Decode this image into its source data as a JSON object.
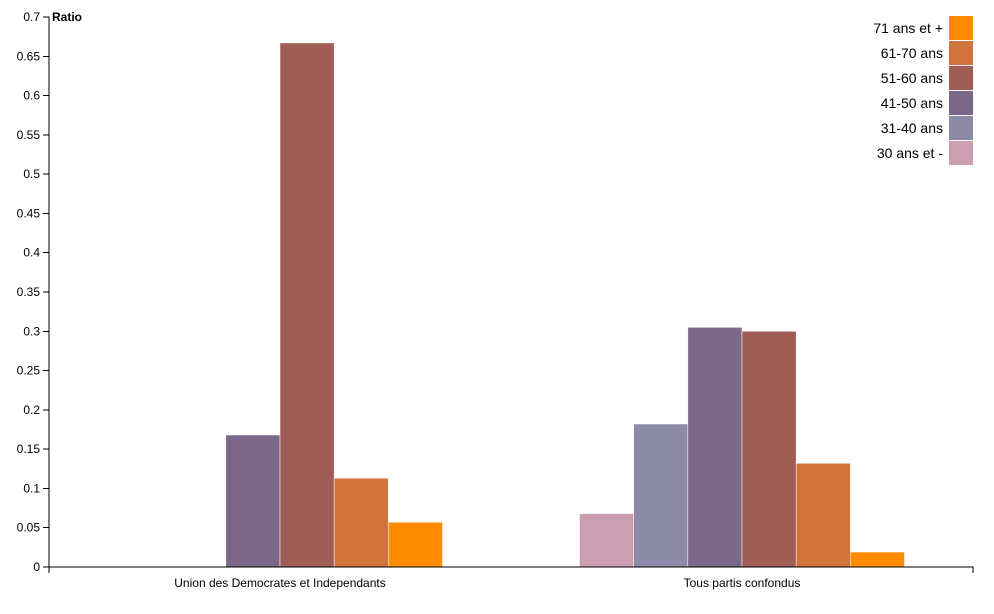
{
  "chart_data": {
    "type": "bar",
    "ylabel": "Ratio",
    "ylim": [
      0,
      0.7
    ],
    "y_ticks": [
      "0",
      "0.05",
      "0.1",
      "0.15",
      "0.2",
      "0.25",
      "0.3",
      "0.35",
      "0.4",
      "0.45",
      "0.5",
      "0.55",
      "0.6",
      "0.65",
      "0.7"
    ],
    "categories": [
      "Union des Democrates et Independants",
      "Tous partis confondus"
    ],
    "series": [
      {
        "name": "30 ans et -",
        "color": "#cc9eb1",
        "values": [
          0,
          0.068
        ]
      },
      {
        "name": "31-40 ans",
        "color": "#8d8aa8",
        "values": [
          0,
          0.182
        ]
      },
      {
        "name": "41-50 ans",
        "color": "#7b6888",
        "values": [
          0.168,
          0.305
        ]
      },
      {
        "name": "51-60 ans",
        "color": "#a05d56",
        "values": [
          0.667,
          0.3
        ]
      },
      {
        "name": "61-70 ans",
        "color": "#d0743c",
        "values": [
          0.113,
          0.132
        ]
      },
      {
        "name": "71 ans et +",
        "color": "#ff8c00",
        "values": [
          0.057,
          0.019
        ]
      }
    ],
    "legend_position": "top-right",
    "legend_order": [
      "71 ans et +",
      "61-70 ans",
      "51-60 ans",
      "41-50 ans",
      "31-40 ans",
      "30 ans et -"
    ],
    "grid": false
  }
}
